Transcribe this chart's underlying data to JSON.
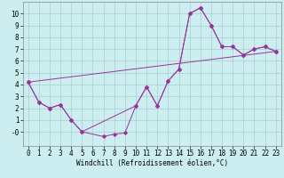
{
  "background_color": "#cceef0",
  "grid_color": "#aacccc",
  "line_color": "#993399",
  "marker_color": "#993399",
  "xlim": [
    -0.5,
    23.5
  ],
  "ylim": [
    -1.2,
    11
  ],
  "xticks": [
    0,
    1,
    2,
    3,
    4,
    5,
    6,
    7,
    8,
    9,
    10,
    11,
    12,
    13,
    14,
    15,
    16,
    17,
    18,
    19,
    20,
    21,
    22,
    23
  ],
  "yticks": [
    0,
    1,
    2,
    3,
    4,
    5,
    6,
    7,
    8,
    9,
    10
  ],
  "ytick_labels": [
    "-0",
    "1",
    "2",
    "3",
    "4",
    "5",
    "6",
    "7",
    "8",
    "9",
    "10"
  ],
  "xlabel": "Windchill (Refroidissement éolien,°C)",
  "curve1_x": [
    0,
    1,
    2,
    3,
    4,
    5,
    7,
    8,
    9,
    10,
    11,
    12,
    13,
    14,
    15,
    16,
    17,
    18,
    19,
    20,
    21,
    22,
    23
  ],
  "curve1_y": [
    4.2,
    2.5,
    2.0,
    2.3,
    1.0,
    0.0,
    -0.4,
    -0.2,
    -0.1,
    2.2,
    3.8,
    2.2,
    4.3,
    5.3,
    10.0,
    10.5,
    9.0,
    7.2,
    7.2,
    6.5,
    7.0,
    7.2,
    6.8
  ],
  "curve2_x": [
    0,
    1,
    2,
    3,
    4,
    5,
    10,
    11,
    12,
    13,
    14,
    15,
    16,
    17,
    18,
    19,
    20,
    21,
    22,
    23
  ],
  "curve2_y": [
    4.2,
    2.5,
    2.0,
    2.3,
    1.0,
    0.0,
    2.2,
    3.8,
    2.2,
    4.3,
    5.3,
    10.0,
    10.5,
    9.0,
    7.2,
    7.2,
    6.5,
    7.0,
    7.2,
    6.8
  ],
  "curve3_x": [
    0,
    23
  ],
  "curve3_y": [
    4.2,
    6.8
  ],
  "font_family": "monospace",
  "xlabel_fontsize": 5.5,
  "tick_fontsize": 5.5
}
